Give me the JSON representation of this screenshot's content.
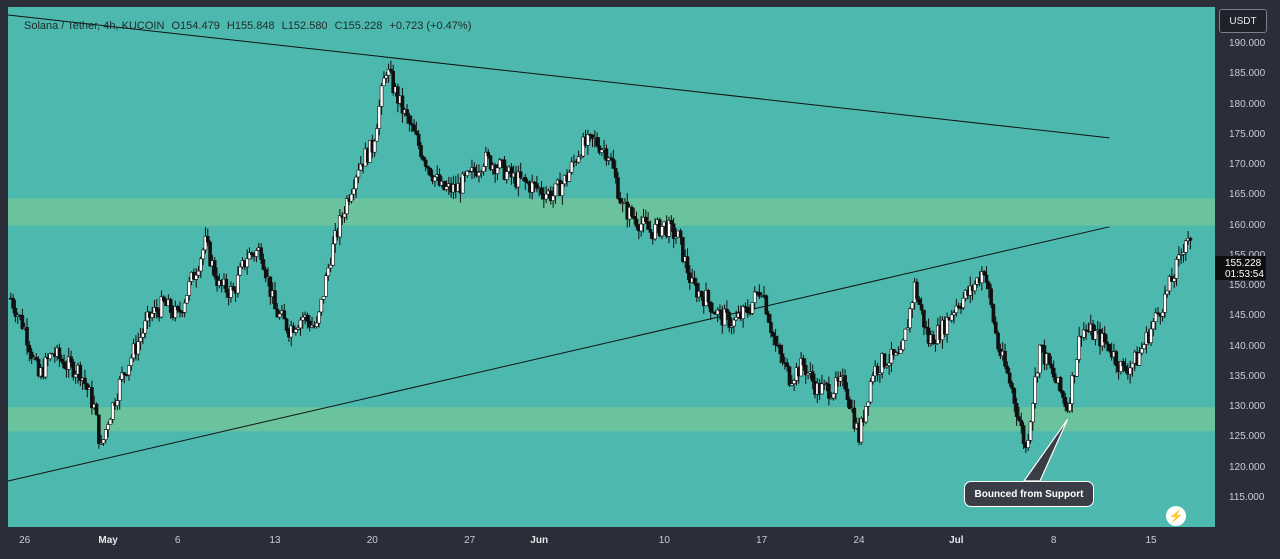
{
  "header": {
    "symbol": "Solana / Tether, 4h, KUCOIN",
    "open": "O154.479",
    "high": "H155.848",
    "low": "L152.580",
    "close": "C155.228",
    "change": "+0.723 (+0.47%)"
  },
  "axis": {
    "currency": "USDT",
    "last_price": "155.228",
    "countdown": "01:53:54"
  },
  "annotation": {
    "text": "Bounced from Support"
  },
  "icons": {
    "bolt": "lightning-bolt-icon"
  },
  "colors": {
    "background": "#4db8ad",
    "zone": "#6ec49a",
    "candle": "#101010",
    "axis_bg": "#2a2e39"
  },
  "chart_data": {
    "type": "candlestick",
    "series_name": "SOL/USDT",
    "y_range": [
      112,
      195
    ],
    "yticks": [
      115,
      120,
      125,
      130,
      135,
      140,
      145,
      150,
      155,
      160,
      165,
      170,
      175,
      180,
      185,
      190
    ],
    "ytick_labels": [
      "115.000",
      "120.000",
      "125.000",
      "130.000",
      "135.000",
      "140.000",
      "145.000",
      "150.000",
      "155.000",
      "160.000",
      "165.000",
      "170.000",
      "175.000",
      "180.000",
      "185.000",
      "190.000"
    ],
    "x_ticks": [
      {
        "label": "26",
        "day": -5,
        "bold": false
      },
      {
        "label": "May",
        "day": 1,
        "bold": true
      },
      {
        "label": "6",
        "day": 6,
        "bold": false
      },
      {
        "label": "13",
        "day": 13,
        "bold": false
      },
      {
        "label": "20",
        "day": 20,
        "bold": false
      },
      {
        "label": "27",
        "day": 27,
        "bold": false
      },
      {
        "label": "Jun",
        "day": 32,
        "bold": true
      },
      {
        "label": "10",
        "day": 41,
        "bold": false
      },
      {
        "label": "17",
        "day": 48,
        "bold": false
      },
      {
        "label": "24",
        "day": 55,
        "bold": false
      },
      {
        "label": "Jul",
        "day": 62,
        "bold": true
      },
      {
        "label": "8",
        "day": 69,
        "bold": false
      },
      {
        "label": "15",
        "day": 76,
        "bold": false
      }
    ],
    "x_range": [
      -6.2,
      80.6
    ],
    "close_path": [
      [
        -6,
        148
      ],
      [
        -5,
        143
      ],
      [
        -4,
        135
      ],
      [
        -3,
        139
      ],
      [
        -2,
        137
      ],
      [
        -1,
        136
      ],
      [
        0,
        130
      ],
      [
        0.5,
        123
      ],
      [
        1,
        128
      ],
      [
        2,
        135
      ],
      [
        3,
        140
      ],
      [
        4,
        145
      ],
      [
        5,
        147
      ],
      [
        6,
        145
      ],
      [
        7,
        151
      ],
      [
        8,
        157
      ],
      [
        9,
        150
      ],
      [
        10,
        149
      ],
      [
        11,
        155
      ],
      [
        12,
        156
      ],
      [
        13,
        146
      ],
      [
        14,
        143
      ],
      [
        15,
        145
      ],
      [
        16,
        143
      ],
      [
        17,
        155
      ],
      [
        18,
        163
      ],
      [
        19,
        170
      ],
      [
        20,
        173
      ],
      [
        21,
        186
      ],
      [
        22,
        180
      ],
      [
        23,
        175
      ],
      [
        24,
        170
      ],
      [
        25,
        166
      ],
      [
        26,
        166
      ],
      [
        27,
        168
      ],
      [
        28,
        171
      ],
      [
        29,
        170
      ],
      [
        30,
        168
      ],
      [
        31,
        167
      ],
      [
        32,
        166
      ],
      [
        33,
        165
      ],
      [
        34,
        168
      ],
      [
        35,
        173
      ],
      [
        36,
        174
      ],
      [
        37,
        172
      ],
      [
        38,
        163
      ],
      [
        39,
        161
      ],
      [
        40,
        159
      ],
      [
        41,
        160
      ],
      [
        42,
        158
      ],
      [
        43,
        150
      ],
      [
        44,
        148
      ],
      [
        45,
        145
      ],
      [
        46,
        144
      ],
      [
        47,
        146
      ],
      [
        48,
        150
      ],
      [
        49,
        140
      ],
      [
        50,
        135
      ],
      [
        51,
        137
      ],
      [
        52,
        133
      ],
      [
        53,
        133
      ],
      [
        54,
        134
      ],
      [
        55,
        125
      ],
      [
        56,
        136
      ],
      [
        57,
        138
      ],
      [
        58,
        138
      ],
      [
        59,
        150
      ],
      [
        60,
        141
      ],
      [
        61,
        143
      ],
      [
        62,
        147
      ],
      [
        63,
        149
      ],
      [
        64,
        153
      ],
      [
        65,
        140
      ],
      [
        66,
        133
      ],
      [
        67,
        123
      ],
      [
        68,
        140
      ],
      [
        69,
        135
      ],
      [
        70,
        130
      ],
      [
        71,
        143
      ],
      [
        72,
        142
      ],
      [
        73,
        140
      ],
      [
        74,
        136
      ],
      [
        75,
        138
      ],
      [
        76,
        143
      ],
      [
        77,
        148
      ],
      [
        78,
        154
      ],
      [
        78.6,
        159
      ],
      [
        79,
        155
      ]
    ],
    "support_zone": [
      126,
      130
    ],
    "resistance_zone": [
      160,
      164.5
    ],
    "trendlines": [
      {
        "name": "descending",
        "from": [
          -6.2,
          194.8
        ],
        "to": [
          73.0,
          174.5
        ]
      },
      {
        "name": "ascending",
        "from": [
          -6.2,
          117.8
        ],
        "to": [
          73.0,
          159.8
        ]
      }
    ],
    "annotation_pointer": [
      70.0,
      128.0
    ]
  }
}
